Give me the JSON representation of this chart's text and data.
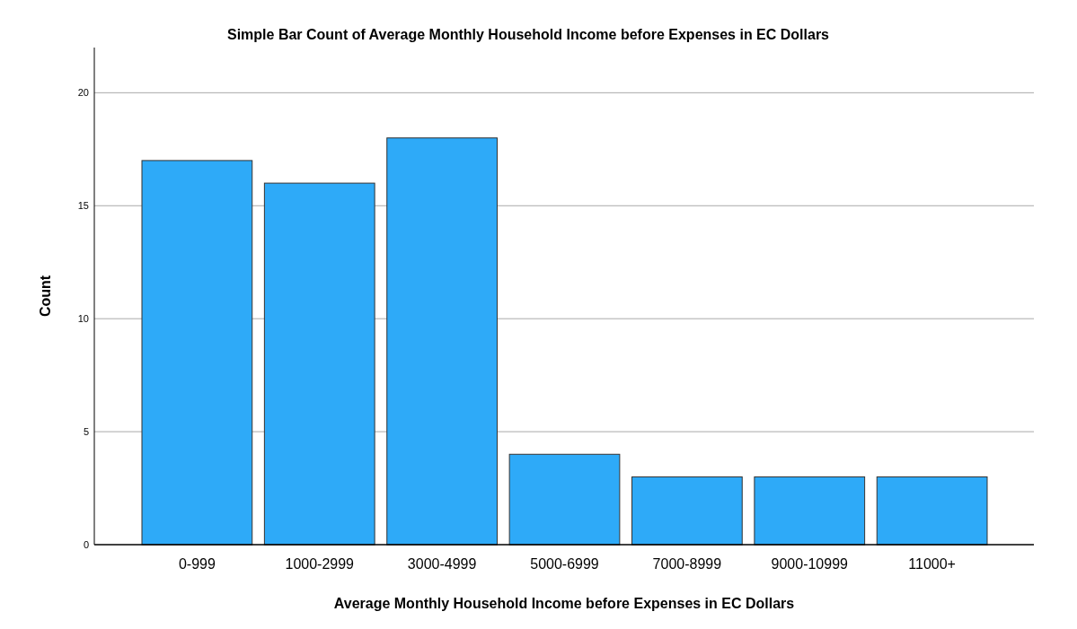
{
  "chart_data": {
    "type": "bar",
    "title": "Simple Bar Count of Average Monthly Household Income before Expenses in EC Dollars",
    "xlabel": "Average Monthly Household Income before Expenses in EC Dollars",
    "ylabel": "Count",
    "categories": [
      "0-999",
      "1000-2999",
      "3000-4999",
      "5000-6999",
      "7000-8999",
      "9000-10999",
      "11000+"
    ],
    "values": [
      17,
      16,
      18,
      4,
      3,
      3,
      3
    ],
    "color": "#2eaaf8",
    "ylim": [
      0,
      22
    ],
    "yticks": [
      0,
      5,
      10,
      15,
      20
    ],
    "grid": "y"
  }
}
